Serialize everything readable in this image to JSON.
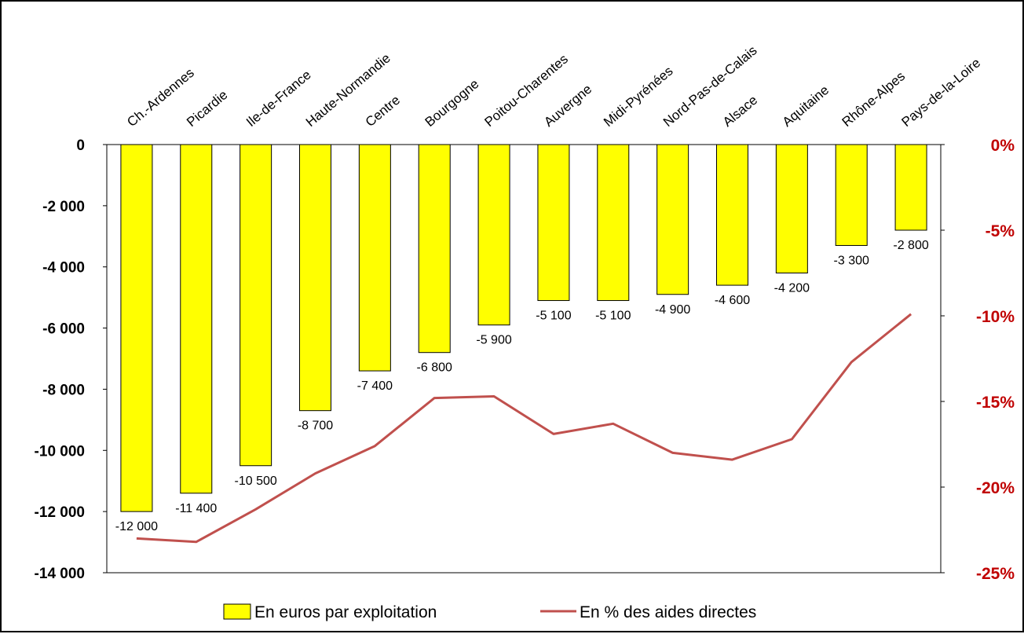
{
  "chart_data": {
    "type": "bar",
    "categories": [
      "Ch.-Ardennes",
      "Picardie",
      "Ile-de-France",
      "Haute-Normandie",
      "Centre",
      "Bourgogne",
      "Poitou-Charentes",
      "Auvergne",
      "Midi-Pyrénées",
      "Nord-Pas-de-Calais",
      "Alsace",
      "Aquitaine",
      "Rhône-Alpes",
      "Pays-de-la-Loire"
    ],
    "series": [
      {
        "name": "En euros par exploitation",
        "type": "bar",
        "axis": "left",
        "color": "#ffff00",
        "values": [
          -12000,
          -11400,
          -10500,
          -8700,
          -7400,
          -6800,
          -5900,
          -5100,
          -5100,
          -4900,
          -4600,
          -4200,
          -3300,
          -2800
        ],
        "labels": [
          "-12 000",
          "-11 400",
          "-10 500",
          "-8 700",
          "-7 400",
          "-6 800",
          "-5 900",
          "-5 100",
          "-5 100",
          "-4 900",
          "-4 600",
          "-4 200",
          "-3 300",
          "-2 800"
        ]
      },
      {
        "name": "En % des aides directes",
        "type": "line",
        "axis": "right",
        "color": "#c0504d",
        "values": [
          -23.0,
          -23.2,
          -21.3,
          -19.2,
          -17.6,
          -14.8,
          -14.7,
          -16.9,
          -16.3,
          -18.0,
          -18.4,
          -17.2,
          -12.7,
          -9.9
        ]
      }
    ],
    "y_left": {
      "ylim": [
        -14000,
        0
      ],
      "ticks": [
        0,
        -2000,
        -4000,
        -6000,
        -8000,
        -10000,
        -12000,
        -14000
      ],
      "tick_labels": [
        "0",
        "-2 000",
        "-4 000",
        "-6 000",
        "-8 000",
        "-10 000",
        "-12 000",
        "-14 000"
      ]
    },
    "y_right": {
      "ylim": [
        -25,
        0
      ],
      "ticks": [
        0,
        -5,
        -10,
        -15,
        -20,
        -25
      ],
      "tick_labels": [
        "0%",
        "-5%",
        "-10%",
        "-15%",
        "-20%",
        "-25%"
      ],
      "color": "#c00000"
    },
    "title": "",
    "xlabel": "",
    "ylabel": "",
    "grid": false,
    "legend_position": "bottom"
  }
}
